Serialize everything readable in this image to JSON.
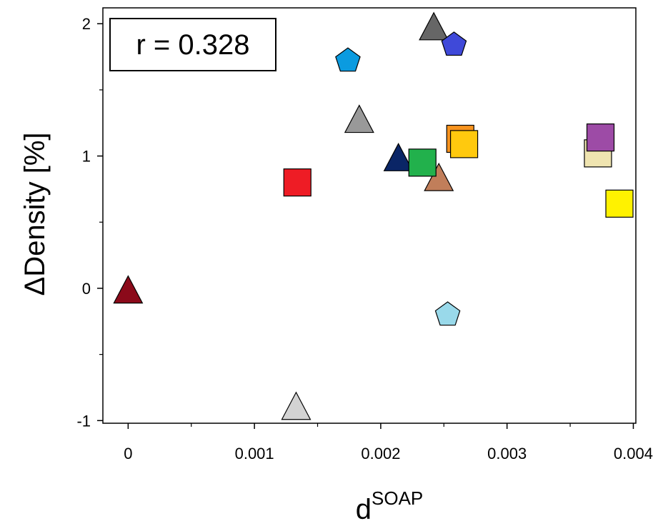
{
  "chart_data": {
    "type": "scatter",
    "title": "",
    "xlabel": "d",
    "xlabel_sup": "SOAP",
    "ylabel": "ΔDensity [%]",
    "xlim": [
      -0.0002,
      0.00402
    ],
    "ylim": [
      -1.02,
      2.12
    ],
    "x_ticks": [
      0,
      0.001,
      0.002,
      0.003,
      0.004
    ],
    "x_tick_labels": [
      "0",
      "0.001",
      "0.002",
      "0.003",
      "0.004"
    ],
    "x_minor_ticks": [
      0.0005,
      0.0015,
      0.0025,
      0.0035
    ],
    "y_ticks": [
      -1,
      0,
      1,
      2
    ],
    "y_tick_labels": [
      "-1",
      "0",
      "1",
      "2"
    ],
    "y_minor_ticks": [
      -0.5,
      0.5,
      1.5
    ],
    "grid": false,
    "annotation": "r = 0.328",
    "points": [
      {
        "x": 0.0,
        "y": -0.02,
        "shape": "triangle",
        "color": "#8B0A1A"
      },
      {
        "x": 0.00133,
        "y": -0.9,
        "shape": "triangle",
        "color": "#D3D3D3"
      },
      {
        "x": 0.00134,
        "y": 0.8,
        "shape": "square",
        "color": "#EE1C25"
      },
      {
        "x": 0.00174,
        "y": 1.72,
        "shape": "pentagon",
        "color": "#0B9BE0"
      },
      {
        "x": 0.00183,
        "y": 1.27,
        "shape": "triangle",
        "color": "#999999"
      },
      {
        "x": 0.00214,
        "y": 0.98,
        "shape": "triangle",
        "color": "#0A2566"
      },
      {
        "x": 0.00246,
        "y": 0.83,
        "shape": "triangle",
        "color": "#C17E5A"
      },
      {
        "x": 0.00233,
        "y": 0.95,
        "shape": "square",
        "color": "#22B14C"
      },
      {
        "x": 0.00242,
        "y": 1.97,
        "shape": "triangle",
        "color": "#666666"
      },
      {
        "x": 0.00258,
        "y": 1.84,
        "shape": "pentagon",
        "color": "#3F49D9"
      },
      {
        "x": 0.00253,
        "y": -0.2,
        "shape": "pentagon",
        "color": "#99D9EA"
      },
      {
        "x": 0.00263,
        "y": 1.13,
        "shape": "square",
        "color": "#F7931E"
      },
      {
        "x": 0.00266,
        "y": 1.09,
        "shape": "square",
        "color": "#FFC90E"
      },
      {
        "x": 0.00372,
        "y": 1.02,
        "shape": "square",
        "color": "#EFE4B0"
      },
      {
        "x": 0.00374,
        "y": 1.14,
        "shape": "square",
        "color": "#9D4BA6"
      },
      {
        "x": 0.00389,
        "y": 0.64,
        "shape": "square",
        "color": "#FFF200"
      }
    ]
  }
}
